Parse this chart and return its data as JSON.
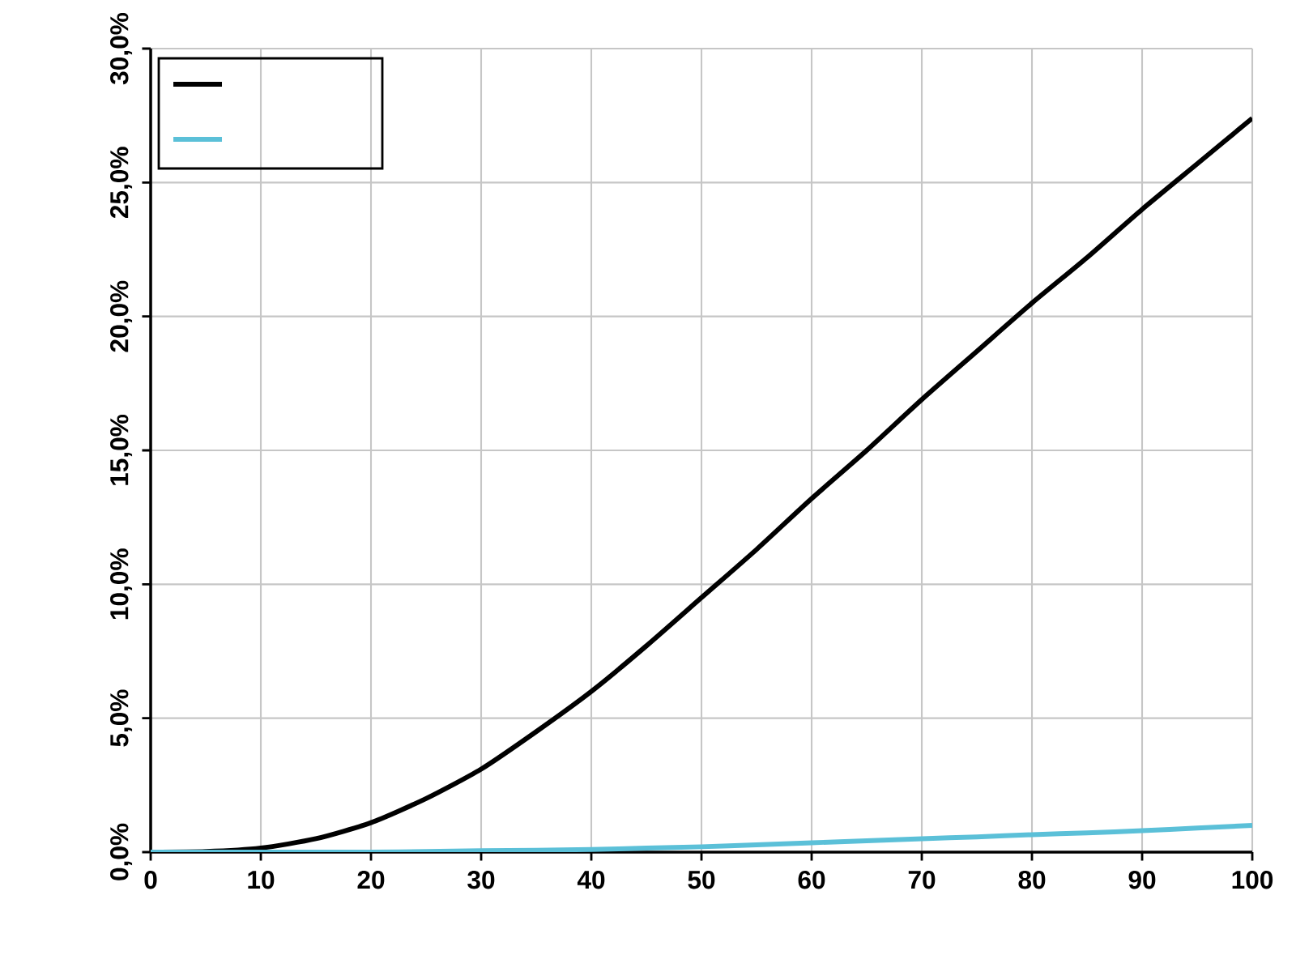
{
  "chart_data": {
    "type": "line",
    "x": [
      0,
      5,
      10,
      15,
      20,
      25,
      30,
      35,
      40,
      45,
      50,
      55,
      60,
      65,
      70,
      75,
      80,
      85,
      90,
      95,
      100
    ],
    "series": [
      {
        "color": "#000000",
        "values": [
          0,
          0.02,
          0.15,
          0.5,
          1.1,
          2.0,
          3.1,
          4.5,
          6.0,
          7.7,
          9.5,
          11.3,
          13.2,
          15.0,
          16.9,
          18.7,
          20.5,
          22.2,
          24.0,
          25.7,
          27.4
        ]
      },
      {
        "color": "#5bc0d8",
        "values": [
          0,
          0,
          0,
          0,
          0,
          0.02,
          0.05,
          0.07,
          0.1,
          0.15,
          0.2,
          0.27,
          0.35,
          0.42,
          0.5,
          0.57,
          0.65,
          0.72,
          0.8,
          0.9,
          1.0
        ]
      }
    ],
    "xlim": [
      0,
      100
    ],
    "xticks": [
      0,
      10,
      20,
      30,
      40,
      50,
      60,
      70,
      80,
      90,
      100
    ],
    "ylim": [
      0,
      30
    ],
    "yticks": [
      {
        "value": 0,
        "label": "0,0%"
      },
      {
        "value": 5,
        "label": "5,0%"
      },
      {
        "value": 10,
        "label": "10,0%"
      },
      {
        "value": 15,
        "label": "15,0%"
      },
      {
        "value": 20,
        "label": "20,0%"
      },
      {
        "value": 25,
        "label": "25,0%"
      },
      {
        "value": 30,
        "label": "30,0%"
      }
    ],
    "grid": true,
    "marker": "none",
    "line_style": "solid"
  }
}
